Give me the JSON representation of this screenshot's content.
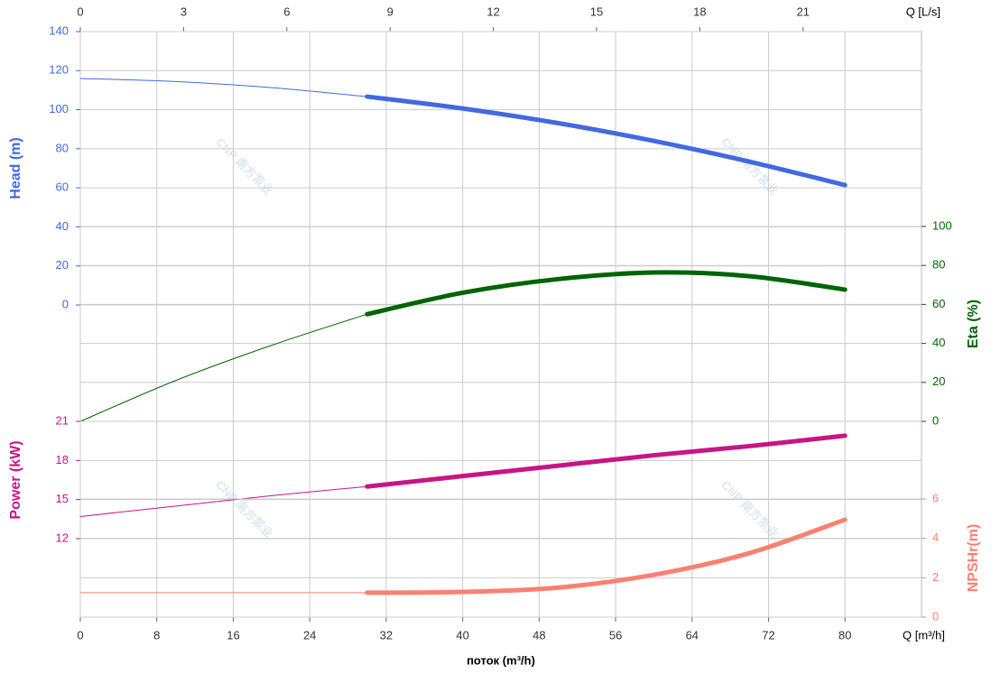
{
  "chart_data": {
    "type": "line",
    "x_label": "поток (m³/h)",
    "x_unit_label": "Q [m³/h]",
    "x": [
      0,
      10,
      20,
      30,
      40,
      50,
      60,
      70,
      80
    ],
    "xlim": [
      0,
      88
    ],
    "xticks": [
      0,
      8,
      16,
      24,
      32,
      40,
      48,
      56,
      64,
      72,
      80
    ],
    "operating_from": 30,
    "top_axis": {
      "label": "Q [L/s]",
      "lim": [
        0,
        24.44
      ],
      "ticks": [
        0,
        3,
        6,
        9,
        12,
        15,
        18,
        21
      ]
    },
    "watermark": "CNP 南方泵业",
    "grid": true,
    "series": [
      {
        "name": "Head (m)",
        "color": "#4169e1",
        "side": "left",
        "ylim": [
          0,
          140
        ],
        "yticks": [
          0,
          20,
          40,
          60,
          80,
          100,
          120,
          140
        ],
        "values": [
          116,
          114.4,
          111.3,
          106.7,
          100.6,
          93.1,
          84.0,
          73.4,
          61.4
        ]
      },
      {
        "name": "Eta (%)",
        "color": "#006400",
        "side": "right",
        "ylim": [
          0,
          100
        ],
        "yticks": [
          0,
          20,
          40,
          60,
          80,
          100
        ],
        "values": [
          0,
          21,
          39,
          55,
          66,
          73,
          76.4,
          74.5,
          67.6
        ]
      },
      {
        "name": "Power (kW)",
        "color": "#c71585",
        "side": "left",
        "ylim": [
          12,
          21
        ],
        "yticks": [
          12,
          15,
          18,
          21
        ],
        "values": [
          13.7,
          14.5,
          15.3,
          16.0,
          16.8,
          17.6,
          18.4,
          19.1,
          19.9
        ]
      },
      {
        "name": "NPSHr(m)",
        "color": "#fa8072",
        "side": "right",
        "ylim": [
          0,
          6
        ],
        "yticks": [
          0,
          2,
          4,
          6
        ],
        "values": [
          1.24,
          1.24,
          1.24,
          1.24,
          1.28,
          1.5,
          2.15,
          3.25,
          4.95
        ]
      }
    ]
  }
}
